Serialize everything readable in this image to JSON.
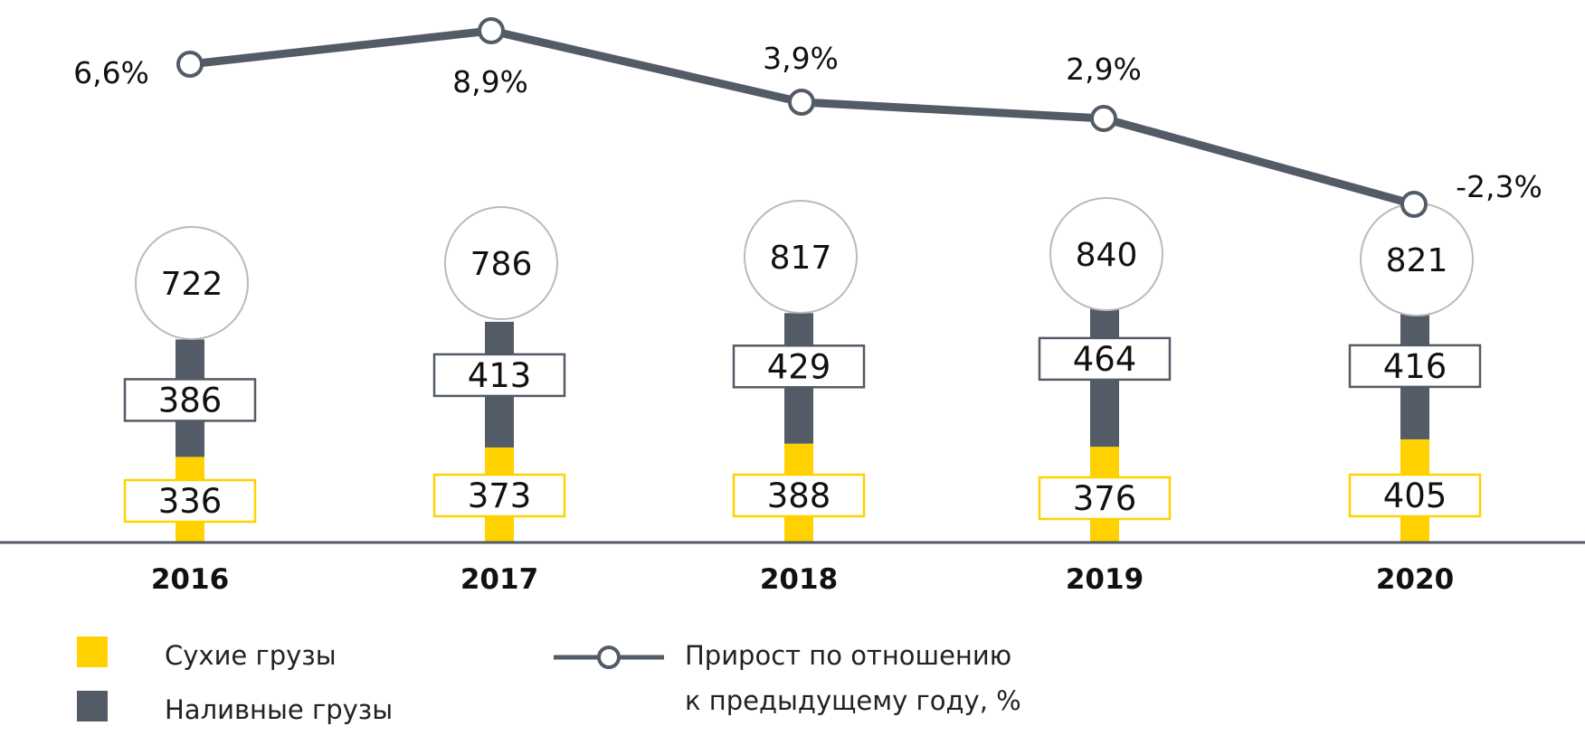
{
  "chart_data": {
    "type": "bar",
    "stacked": true,
    "categories": [
      "2016",
      "2017",
      "2018",
      "2019",
      "2020"
    ],
    "series": [
      {
        "name": "Сухие грузы",
        "values": [
          336,
          373,
          388,
          376,
          405
        ],
        "color": "#FFD100"
      },
      {
        "name": "Наливные грузы",
        "values": [
          386,
          413,
          429,
          464,
          416
        ],
        "color": "#535B66"
      }
    ],
    "totals": [
      722,
      786,
      817,
      840,
      821
    ],
    "line_series": {
      "name": "Прирост по отношению к предыдущему году, %",
      "values": [
        6.6,
        8.9,
        3.9,
        2.9,
        -2.3
      ],
      "labels": [
        "6,6%",
        "8,9%",
        "3,9%",
        "2,9%",
        "-2,3%"
      ],
      "color": "#535B66"
    },
    "legend": {
      "dry_label": "Сухие грузы",
      "liquid_label": "Наливные грузы",
      "growth_label_line1": "Прирост по отношению",
      "growth_label_line2": "к предыдущему году, %"
    },
    "legend_placement": "bottom",
    "grid": false
  }
}
